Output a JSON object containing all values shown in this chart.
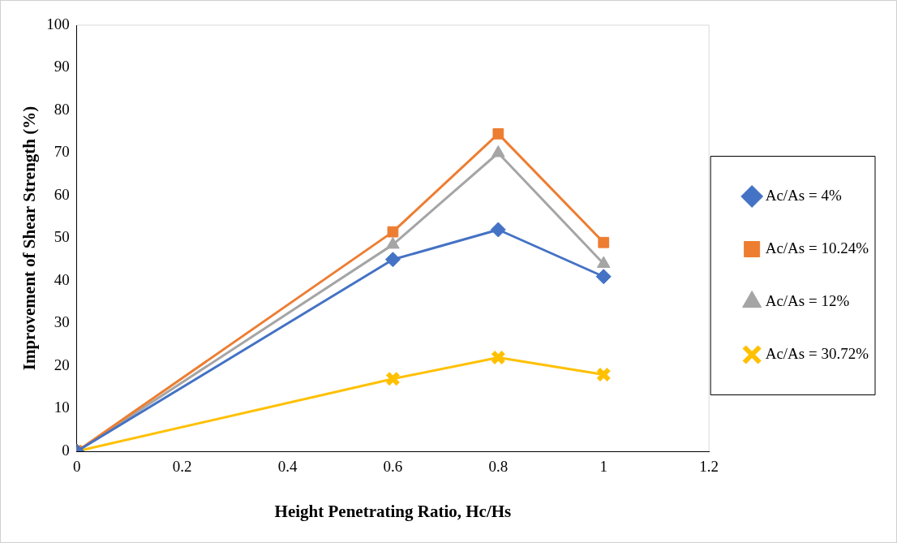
{
  "chart_data": {
    "type": "line",
    "xlabel": "Height Penetrating Ratio, Hc/Hs",
    "ylabel": "Improvement of Shear Strength (%)",
    "xlim": [
      0,
      1.2
    ],
    "xticks": [
      0,
      0.2,
      0.4,
      0.6,
      0.8,
      1,
      1.2
    ],
    "ylim": [
      0,
      100
    ],
    "yticks": [
      0,
      10,
      20,
      30,
      40,
      50,
      60,
      70,
      80,
      90,
      100
    ],
    "grid": false,
    "legend": "right",
    "line_style": "solid",
    "series": [
      {
        "name": "Ac/As = 4%",
        "color": "#4472c4",
        "marker": "diamond",
        "x": [
          0,
          0.6,
          0.8,
          1
        ],
        "values": [
          0,
          45,
          52,
          41
        ]
      },
      {
        "name": "Ac/As = 10.24%",
        "color": "#ed7d31",
        "marker": "square",
        "x": [
          0,
          0.6,
          0.8,
          1
        ],
        "values": [
          0,
          51.5,
          74.5,
          49
        ]
      },
      {
        "name": "Ac/As = 12%",
        "color": "#a5a5a5",
        "marker": "triangle",
        "x": [
          0,
          0.6,
          0.8,
          1
        ],
        "values": [
          0,
          48.5,
          70,
          44
        ]
      },
      {
        "name": "Ac/As = 30.72%",
        "color": "#ffc000",
        "marker": "cross",
        "x": [
          0,
          0.6,
          0.8,
          1
        ],
        "values": [
          0,
          17,
          22,
          18
        ]
      }
    ]
  }
}
